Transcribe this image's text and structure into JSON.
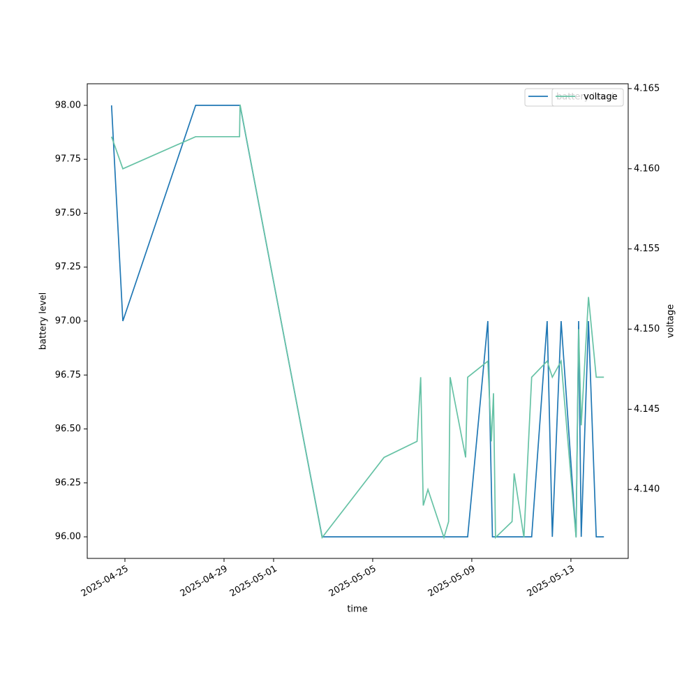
{
  "chart_data": {
    "type": "line",
    "xlabel": "time",
    "ylabel": "battery level",
    "y2label": "voltage",
    "xlim": [
      "2025-04-23T11:30",
      "2025-05-15T07:30"
    ],
    "xticks": [
      "2025-04-25",
      "2025-04-29",
      "2025-05-01",
      "2025-05-05",
      "2025-05-09",
      "2025-05-13"
    ],
    "ylim": [
      95.9,
      98.1
    ],
    "yticks": [
      {
        "value": 96,
        "label": "96.00"
      },
      {
        "value": 96.25,
        "label": "96.25"
      },
      {
        "value": 96.5,
        "label": "96.50"
      },
      {
        "value": 96.75,
        "label": "96.75"
      },
      {
        "value": 97,
        "label": "97.00"
      },
      {
        "value": 97.25,
        "label": "97.25"
      },
      {
        "value": 97.5,
        "label": "97.50"
      },
      {
        "value": 97.75,
        "label": "97.75"
      },
      {
        "value": 98,
        "label": "98.00"
      }
    ],
    "y2lim": [
      4.1357,
      4.1653
    ],
    "y2ticks": [
      {
        "value": 4.14,
        "label": "4.140"
      },
      4.145,
      {
        "value": 4.15,
        "label": "4.150"
      },
      4.155,
      {
        "value": 4.16,
        "label": "4.160"
      },
      4.165
    ],
    "series": [
      {
        "name": "battery level",
        "color": "#1f77b4",
        "x": [
          "2025-04-24T11:00",
          "2025-04-24T22:00",
          "2025-04-27T20:30",
          "2025-04-29T15:30",
          "2025-05-02T23:00",
          "2025-05-08T20:00",
          "2025-05-09T15:30",
          "2025-05-09T20:00",
          "2025-05-11T10:00",
          "2025-05-12T01:00",
          "2025-05-12T06:00",
          "2025-05-12T14:30",
          "2025-05-13T05:00",
          "2025-05-13T07:30",
          "2025-05-13T10:00",
          "2025-05-13T17:00",
          "2025-05-14T00:30",
          "2025-05-14T08:00"
        ],
        "values": [
          98,
          97,
          98,
          98,
          96,
          96,
          97,
          96,
          96,
          97,
          96,
          97,
          96,
          97,
          96,
          97,
          96,
          96
        ]
      },
      {
        "name": "voltage",
        "color": "#66c2a5",
        "axis": "y2",
        "x": [
          "2025-04-24T11:00",
          "2025-04-24T22:00",
          "2025-04-27T20:30",
          "2025-04-29T15:00",
          "2025-04-29T15:30",
          "2025-05-02T23:00",
          "2025-05-05T11:00",
          "2025-05-06T19:00",
          "2025-05-06T22:30",
          "2025-05-07T01:00",
          "2025-05-07T05:30",
          "2025-05-07T21:00",
          "2025-05-08T01:30",
          "2025-05-08T03:00",
          "2025-05-08T18:00",
          "2025-05-08T20:00",
          "2025-05-09T15:30",
          "2025-05-09T19:00",
          "2025-05-09T21:00",
          "2025-05-09T23:00",
          "2025-05-10T15:00",
          "2025-05-10T17:00",
          "2025-05-11T02:30",
          "2025-05-11T10:00",
          "2025-05-12T01:00",
          "2025-05-12T06:00",
          "2025-05-12T14:30",
          "2025-05-13T05:00",
          "2025-05-13T07:30",
          "2025-05-13T10:00",
          "2025-05-13T17:00",
          "2025-05-14T00:30",
          "2025-05-14T08:00"
        ],
        "values": [
          4.162,
          4.16,
          4.162,
          4.162,
          4.164,
          4.137,
          4.142,
          4.143,
          4.147,
          4.139,
          4.14,
          4.137,
          4.138,
          4.147,
          4.142,
          4.147,
          4.148,
          4.143,
          4.146,
          4.137,
          4.138,
          4.141,
          4.137,
          4.147,
          4.148,
          4.147,
          4.148,
          4.137,
          4.15,
          4.144,
          4.152,
          4.147,
          4.147
        ]
      }
    ]
  }
}
